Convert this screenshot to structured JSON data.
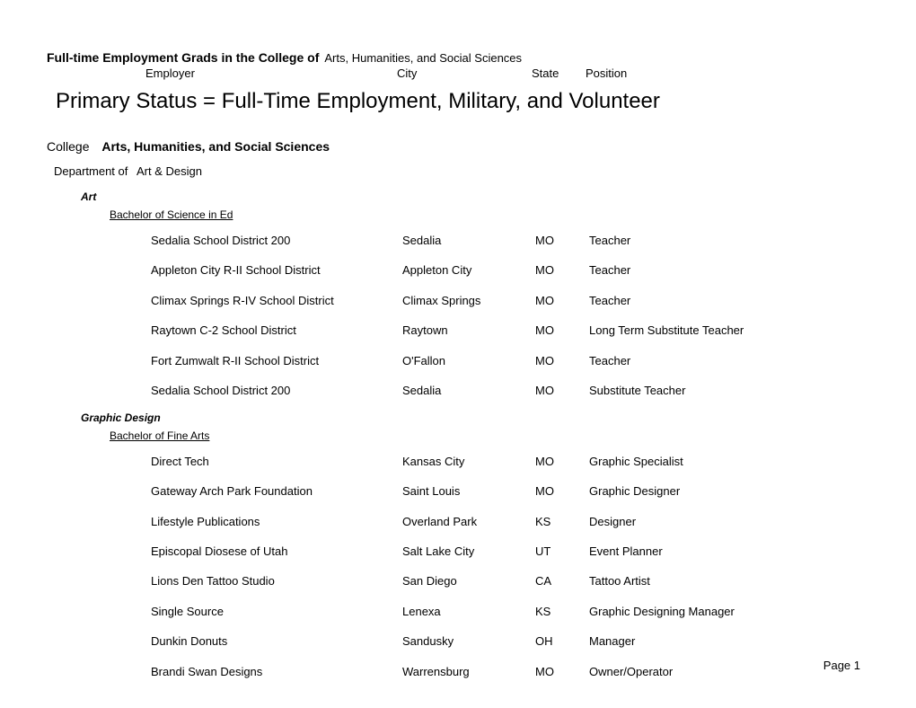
{
  "header": {
    "prefix": "Full-time Employment Grads in the College of",
    "college_name": "Arts, Humanities, and Social Sciences",
    "columns": {
      "employer": "Employer",
      "city": "City",
      "state": "State",
      "position": "Position"
    }
  },
  "title": "Primary Status = Full-Time Employment, Military, and Volunteer",
  "college": {
    "label": "College",
    "value": "Arts, Humanities, and Social Sciences"
  },
  "department": {
    "label": "Department of",
    "value": "Art & Design"
  },
  "programs": [
    {
      "name": "Art",
      "degrees": [
        {
          "name": "Bachelor of Science in Ed",
          "rows": [
            {
              "employer": "Sedalia School District 200",
              "city": "Sedalia",
              "state": "MO",
              "position": "Teacher"
            },
            {
              "employer": "Appleton City R-II School District",
              "city": "Appleton City",
              "state": "MO",
              "position": "Teacher"
            },
            {
              "employer": "Climax Springs R-IV School District",
              "city": "Climax Springs",
              "state": "MO",
              "position": "Teacher"
            },
            {
              "employer": "Raytown C-2 School District",
              "city": "Raytown",
              "state": "MO",
              "position": "Long Term Substitute Teacher"
            },
            {
              "employer": "Fort Zumwalt R-II School District",
              "city": "O'Fallon",
              "state": "MO",
              "position": "Teacher"
            },
            {
              "employer": "Sedalia School District 200",
              "city": "Sedalia",
              "state": "MO",
              "position": "Substitute Teacher"
            }
          ]
        }
      ]
    },
    {
      "name": "Graphic Design",
      "degrees": [
        {
          "name": "Bachelor of Fine Arts",
          "rows": [
            {
              "employer": "Direct Tech",
              "city": "Kansas City",
              "state": "MO",
              "position": "Graphic Specialist"
            },
            {
              "employer": "Gateway Arch Park Foundation",
              "city": "Saint Louis",
              "state": "MO",
              "position": "Graphic Designer"
            },
            {
              "employer": "Lifestyle Publications",
              "city": "Overland Park",
              "state": "KS",
              "position": "Designer"
            },
            {
              "employer": "Episcopal Diosese of Utah",
              "city": "Salt Lake City",
              "state": "UT",
              "position": "Event Planner"
            },
            {
              "employer": "Lions Den Tattoo Studio",
              "city": "San Diego",
              "state": "CA",
              "position": "Tattoo Artist"
            },
            {
              "employer": "Single Source",
              "city": "Lenexa",
              "state": "KS",
              "position": "Graphic Designing Manager"
            },
            {
              "employer": "Dunkin Donuts",
              "city": "Sandusky",
              "state": "OH",
              "position": "Manager"
            },
            {
              "employer": "Brandi Swan Designs",
              "city": "Warrensburg",
              "state": "MO",
              "position": "Owner/Operator"
            }
          ]
        }
      ]
    }
  ],
  "page_number": "Page 1"
}
